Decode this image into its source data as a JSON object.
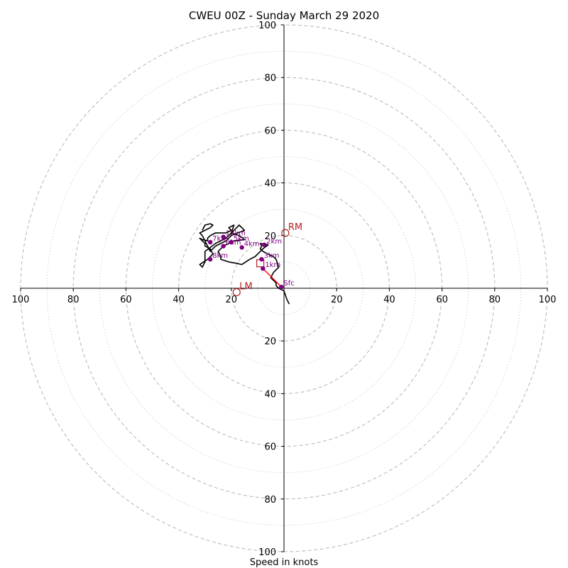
{
  "chart_data": {
    "type": "scatter",
    "title": "CWEU 00Z - Sunday March 29 2020",
    "xlabel": "Speed in knots",
    "ylabel": "",
    "xlim": [
      -100,
      100
    ],
    "ylim": [
      -100,
      100
    ],
    "rings_major": [
      20,
      40,
      60,
      80,
      100
    ],
    "rings_minor": [
      10,
      30,
      50,
      70,
      90
    ],
    "x_tick_labels": [
      "100",
      "80",
      "60",
      "40",
      "20",
      "20",
      "40",
      "60",
      "80",
      "100"
    ],
    "x_tick_values": [
      -100,
      -80,
      -60,
      -40,
      -20,
      20,
      40,
      60,
      80,
      100
    ],
    "y_tick_labels": [
      "100",
      "80",
      "60",
      "40",
      "20",
      "20",
      "40",
      "60",
      "80",
      "100"
    ],
    "y_tick_values": [
      100,
      80,
      60,
      40,
      20,
      -20,
      -40,
      -60,
      -80,
      -100
    ],
    "hodograph": {
      "x": [
        2.0,
        1.0,
        0.0,
        -2.0,
        -3.0,
        -3.0,
        -5.0,
        -4.0,
        -2.0,
        -3.0,
        -4.0,
        -6.0,
        -8.0,
        -9.0,
        -8.5,
        -9.0,
        -6.0,
        -8.0,
        -9.0,
        -11.0,
        -13.0,
        -16.0,
        -18.0,
        -21.0,
        -24.0,
        -24.0,
        -25.0,
        -23.0,
        -19.0,
        -15.0,
        -17.0,
        -20.0,
        -19.0,
        -21.0,
        -20.0,
        -22.0,
        -26.0,
        -28.0,
        -29.0,
        -29.0,
        -31.0,
        -32.0,
        -30.0,
        -30.0,
        -28.0,
        -27.0,
        -29.0,
        -32.0,
        -31.0,
        -30.0,
        -30.0,
        -26.0,
        -22.0,
        -19.0,
        -17.0,
        -15.0,
        -20.0,
        -22.0,
        -26.0,
        -28.0,
        -29.0,
        -30.0,
        -31.0,
        -32.0,
        -30.0,
        -28.0,
        -27.0,
        -28.0,
        -30.0,
        -31.0
      ],
      "y": [
        -6.0,
        -4.0,
        -1.0,
        0.0,
        1.0,
        2.0,
        4.0,
        6.0,
        8.0,
        11.0,
        12.0,
        13.0,
        14.0,
        15.0,
        16.0,
        17.0,
        16.5,
        15.0,
        14.0,
        12.0,
        11.0,
        9.0,
        9.5,
        10.0,
        11.0,
        12.0,
        14.0,
        16.0,
        18.0,
        18.5,
        20.0,
        21.0,
        24.0,
        23.0,
        22.0,
        21.0,
        21.0,
        20.0,
        19.0,
        18.0,
        18.5,
        19.0,
        17.0,
        16.0,
        15.0,
        13.0,
        11.0,
        9.0,
        8.0,
        10.0,
        14.0,
        17.0,
        19.0,
        22.0,
        24.0,
        22.0,
        20.0,
        18.0,
        16.0,
        14.0,
        16.0,
        18.0,
        20.0,
        21.0,
        22.0,
        23.0,
        24.0,
        24.5,
        24.0,
        22.0
      ]
    },
    "height_markers": [
      {
        "label": "Sfc",
        "x": -1.0,
        "y": 0.5
      },
      {
        "label": "1km",
        "x": -8.0,
        "y": 7.5
      },
      {
        "label": "3km",
        "x": -8.5,
        "y": 11.0
      },
      {
        "label": "2km",
        "x": -7.5,
        "y": 16.5
      },
      {
        "label": "4km",
        "x": -16.0,
        "y": 15.5
      },
      {
        "label": "5km",
        "x": -20.0,
        "y": 17.5
      },
      {
        "label": "6km",
        "x": -23.0,
        "y": 16.0
      },
      {
        "label": "7km",
        "x": -28.0,
        "y": 17.5
      },
      {
        "label": "12km",
        "x": -23.0,
        "y": 19.5
      },
      {
        "label": "8km",
        "x": -28.0,
        "y": 11.0
      }
    ],
    "storm_motion": [
      {
        "label": "RM",
        "x": 0.5,
        "y": 21.0
      },
      {
        "label": "LM",
        "x": -18.0,
        "y": -1.5
      }
    ],
    "mean_wind": {
      "x": -9.0,
      "y": 9.5
    },
    "shear_vector": {
      "x1": -1.0,
      "y1": 0.5,
      "x2": -8.0,
      "y2": 7.5
    }
  }
}
